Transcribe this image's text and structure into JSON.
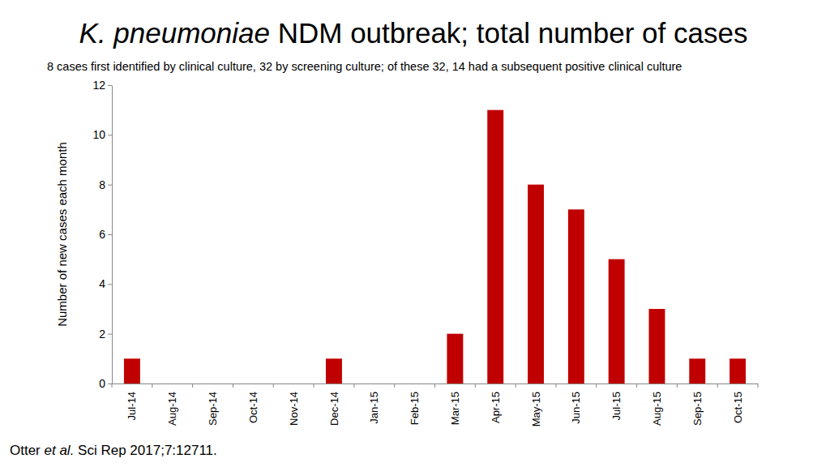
{
  "chart_data": {
    "type": "bar",
    "title": "K. pneumoniae NDM outbreak; total number of cases",
    "subtitle": "8 cases first identified by clinical culture, 32 by screening culture; of these 32, 14 had a subsequent positive clinical culture",
    "y_label": "Number of new cases each month",
    "annotations": [
      "Otter et al. Sci Rep 2017;7:12711."
    ],
    "categories": [
      "Jul-14",
      "Aug-14",
      "Sep-14",
      "Oct-14",
      "Nov-14",
      "Dec-14",
      "Jan-15",
      "Feb-15",
      "Mar-15",
      "Apr-15",
      "May-15",
      "Jun-15",
      "Jul-15",
      "Aug-15",
      "Sep-15",
      "Oct-15"
    ],
    "values": [
      1,
      0,
      0,
      0,
      0,
      1,
      0,
      0,
      2,
      11,
      8,
      7,
      5,
      3,
      1,
      1
    ],
    "color": "#c00000",
    "ylim": [
      0,
      12
    ],
    "yticks": [
      0,
      2,
      4,
      6,
      8,
      10,
      12
    ],
    "grid": false
  }
}
